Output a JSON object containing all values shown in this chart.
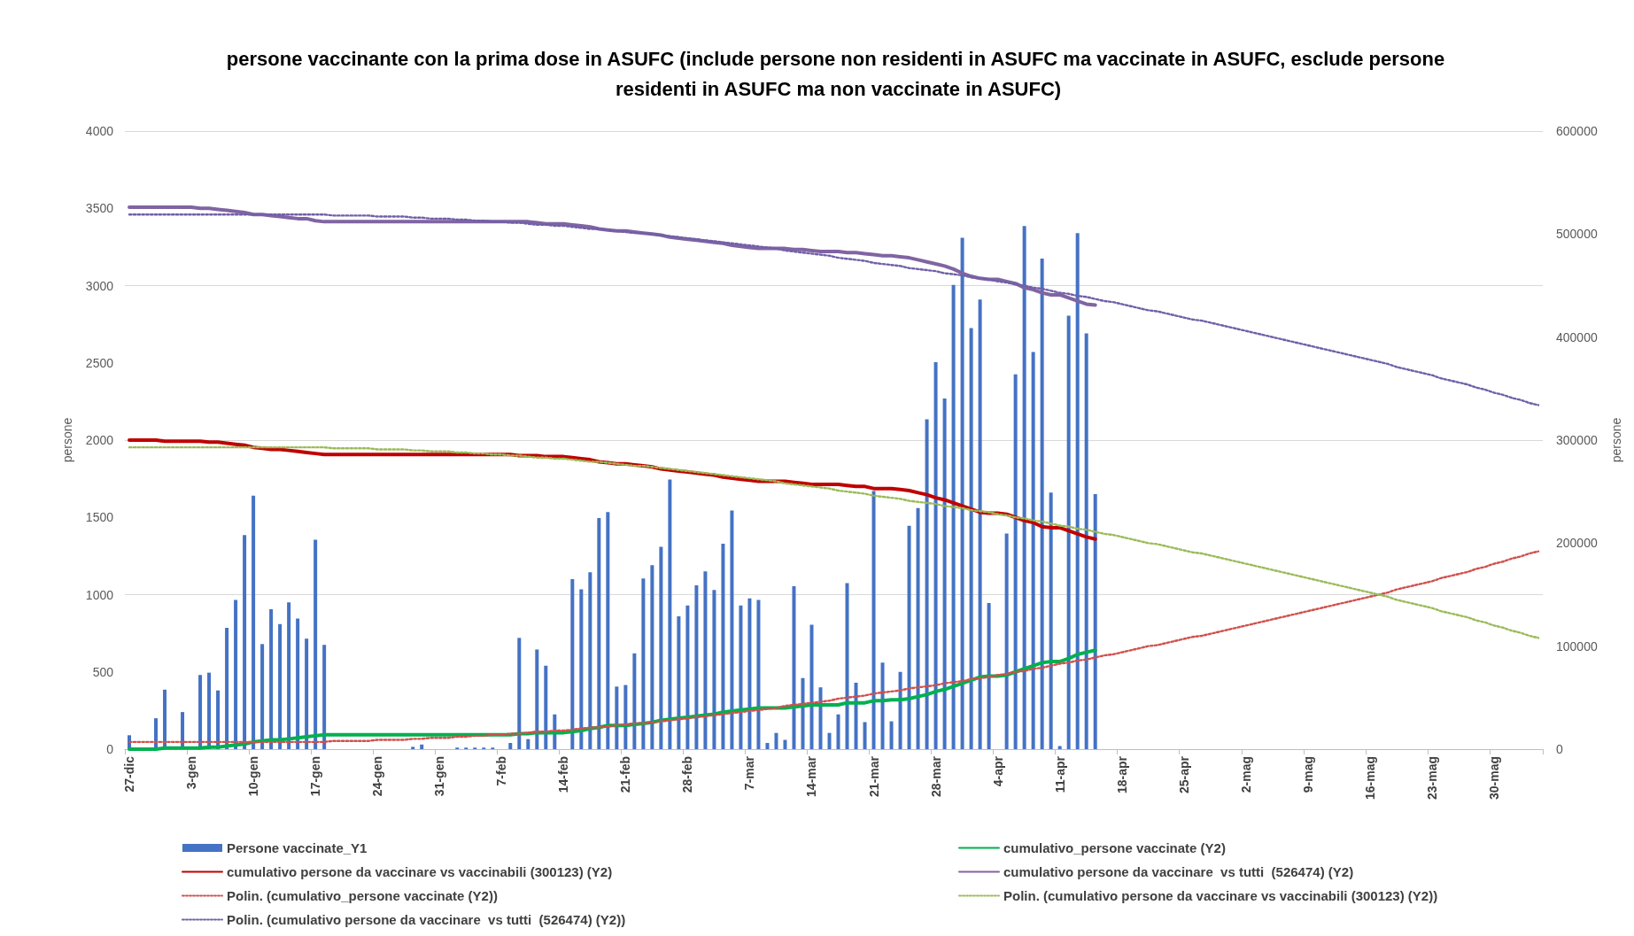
{
  "chart_data": {
    "type": "bar",
    "title": "persone vaccinante con la prima dose in ASUFC (include persone non residenti in ASUFC ma vaccinate in ASUFC, esclude persone residenti in ASUFC ma non vaccinate in ASUFC)",
    "ylabel": "persone",
    "y2label": "persone",
    "categories": [
      "27-dic",
      null,
      null,
      null,
      null,
      null,
      null,
      "3-gen",
      null,
      null,
      null,
      null,
      null,
      null,
      "10-gen",
      null,
      null,
      null,
      null,
      null,
      null,
      "17-gen",
      null,
      null,
      null,
      null,
      null,
      null,
      "24-gen",
      null,
      null,
      null,
      null,
      null,
      null,
      "31-gen",
      null,
      null,
      null,
      null,
      null,
      null,
      "7-feb",
      null,
      null,
      null,
      null,
      null,
      null,
      "14-feb",
      null,
      null,
      null,
      null,
      null,
      null,
      "21-feb",
      null,
      null,
      null,
      null,
      null,
      null,
      "28-feb",
      null,
      null,
      null,
      null,
      null,
      null,
      "7-mar",
      null,
      null,
      null,
      null,
      null,
      null,
      "14-mar",
      null,
      null,
      null,
      null,
      null,
      null,
      "21-mar",
      null,
      null,
      null,
      null,
      null,
      null,
      "28-mar",
      null,
      null,
      null,
      null,
      null,
      null,
      "4-apr",
      null,
      null,
      null,
      null,
      null,
      null,
      "11-apr",
      null,
      null,
      null,
      null,
      null,
      null,
      "18-apr",
      null,
      null,
      null,
      null,
      null,
      null,
      "25-apr",
      null,
      null,
      null,
      null,
      null,
      null,
      "2-mag",
      null,
      null,
      null,
      null,
      null,
      null,
      "9-mag",
      null,
      null,
      null,
      null,
      null,
      null,
      "16-mag",
      null,
      null,
      null,
      null,
      null,
      null,
      "23-mag",
      null,
      null,
      null,
      null,
      null,
      null,
      "30-mag",
      null,
      null,
      null,
      null,
      null
    ],
    "ylim": [
      0,
      4000
    ],
    "yticks": [
      0,
      500,
      1000,
      1500,
      2000,
      2500,
      3000,
      3500,
      4000
    ],
    "y2lim": [
      0,
      600000
    ],
    "y2ticks": [
      0,
      100000,
      200000,
      300000,
      400000,
      500000,
      600000
    ],
    "grid": "y",
    "legend": "bottom",
    "marker": "none",
    "series": [
      {
        "name": "Persone vaccinate_Y1",
        "color": "#4472c4",
        "values": [
          90,
          null,
          null,
          200,
          385,
          null,
          240,
          null,
          480,
          495,
          380,
          785,
          965,
          1385,
          1640,
          680,
          905,
          810,
          950,
          845,
          715,
          1355,
          675,
          null,
          null,
          null,
          null,
          null,
          null,
          null,
          null,
          null,
          15,
          30,
          null,
          null,
          null,
          10,
          10,
          10,
          10,
          10,
          null,
          40,
          720,
          65,
          645,
          540,
          225,
          null,
          1100,
          1035,
          1145,
          1495,
          1535,
          405,
          415,
          620,
          1105,
          1190,
          1310,
          1745,
          860,
          930,
          1060,
          1150,
          1030,
          1330,
          1545,
          930,
          975,
          965,
          40,
          105,
          60,
          1055,
          460,
          805,
          400,
          105,
          225,
          1075,
          430,
          175,
          1670,
          560,
          180,
          500,
          1445,
          1560,
          2135,
          2505,
          2270,
          3005,
          3310,
          2725,
          2910,
          945,
          null,
          1395,
          2425,
          3385,
          2570,
          3175,
          1660,
          20,
          2805,
          3340,
          2690,
          1650,
          null,
          null,
          null,
          null,
          null,
          null,
          null,
          null,
          null,
          null,
          null,
          null,
          null,
          null,
          null,
          null,
          null,
          null,
          null,
          null,
          null,
          null,
          null,
          null,
          null,
          null,
          null,
          null,
          null,
          null,
          null,
          null,
          null,
          null,
          null,
          null,
          null,
          null,
          null,
          null,
          null,
          null,
          null,
          null,
          null,
          null,
          null,
          null,
          null,
          null
        ]
      },
      {
        "name": "cumulativo_persone vaccinate (Y2)",
        "type": "line",
        "axis": "y2",
        "color": "#00b050",
        "values": [
          0,
          0,
          0,
          0,
          1000,
          1000,
          1000,
          1000,
          1000,
          2000,
          2000,
          3000,
          4000,
          5000,
          7000,
          8000,
          9000,
          9000,
          10000,
          11000,
          12000,
          13000,
          14000,
          14000,
          14000,
          14000,
          14000,
          14000,
          14000,
          14000,
          14000,
          14000,
          14000,
          14000,
          14000,
          14000,
          14000,
          14000,
          14000,
          14000,
          14000,
          14000,
          14000,
          14000,
          15000,
          15000,
          16000,
          16000,
          16000,
          16000,
          17000,
          18000,
          20000,
          21000,
          23000,
          23000,
          23000,
          24000,
          25000,
          26000,
          28000,
          29000,
          30000,
          31000,
          32000,
          33000,
          34000,
          36000,
          37000,
          38000,
          39000,
          40000,
          40000,
          40000,
          40000,
          41000,
          42000,
          43000,
          43000,
          43000,
          43000,
          45000,
          45000,
          45000,
          47000,
          47000,
          48000,
          48000,
          49000,
          51000,
          53000,
          56000,
          58000,
          61000,
          64000,
          67000,
          70000,
          71000,
          71000,
          72000,
          75000,
          78000,
          81000,
          84000,
          85000,
          85000,
          88000,
          92000,
          94000,
          96000,
          null,
          null,
          null,
          null,
          null,
          null,
          null,
          null,
          null,
          null,
          null,
          null,
          null,
          null,
          null,
          null,
          null,
          null,
          null,
          null,
          null,
          null,
          null,
          null,
          null,
          null,
          null,
          null,
          null,
          null,
          null,
          null,
          null,
          null,
          null,
          null,
          null,
          null,
          null,
          null,
          null,
          null,
          null,
          null,
          null,
          null,
          null,
          null,
          null,
          null
        ]
      },
      {
        "name": "cumulativo persone da vaccinare vs vaccinabili (300123) (Y2)",
        "type": "line",
        "axis": "y2",
        "color": "#c00000",
        "values": [
          300000,
          300000,
          300000,
          300000,
          299000,
          299000,
          299000,
          299000,
          299000,
          298000,
          298000,
          297000,
          296000,
          295000,
          293000,
          292000,
          291000,
          291000,
          290000,
          289000,
          288000,
          287000,
          286000,
          286000,
          286000,
          286000,
          286000,
          286000,
          286000,
          286000,
          286000,
          286000,
          286000,
          286000,
          286000,
          286000,
          286000,
          286000,
          286000,
          286000,
          286000,
          286000,
          286000,
          286000,
          285000,
          285000,
          285000,
          284000,
          284000,
          284000,
          283000,
          282000,
          281000,
          279000,
          278000,
          277000,
          277000,
          276000,
          275000,
          274000,
          272000,
          271000,
          270000,
          269000,
          268000,
          267000,
          266000,
          264000,
          263000,
          262000,
          261000,
          260000,
          260000,
          260000,
          260000,
          259000,
          258000,
          257000,
          257000,
          257000,
          257000,
          256000,
          255000,
          255000,
          253000,
          253000,
          253000,
          252000,
          251000,
          249000,
          247000,
          244000,
          242000,
          239000,
          236000,
          233000,
          230000,
          229000,
          229000,
          228000,
          225000,
          222000,
          220000,
          216000,
          215000,
          215000,
          212000,
          209000,
          206000,
          204000,
          null,
          null,
          null,
          null,
          null,
          null,
          null,
          null,
          null,
          null,
          null,
          null,
          null,
          null,
          null,
          null,
          null,
          null,
          null,
          null,
          null,
          null,
          null,
          null,
          null,
          null,
          null,
          null,
          null,
          null,
          null,
          null,
          null,
          null,
          null,
          null,
          null,
          null,
          null,
          null,
          null,
          null,
          null,
          null,
          null,
          null,
          null,
          null,
          null,
          null
        ]
      },
      {
        "name": "cumulativo persone da vaccinare  vs tutti  (526474) (Y2)",
        "type": "line",
        "axis": "y2",
        "color": "#8064a2",
        "values": [
          526000,
          526000,
          526000,
          526000,
          526000,
          526000,
          526000,
          526000,
          525000,
          525000,
          524000,
          523000,
          522000,
          521000,
          519000,
          519000,
          518000,
          517000,
          516000,
          515000,
          515000,
          513000,
          512000,
          512000,
          512000,
          512000,
          512000,
          512000,
          512000,
          512000,
          512000,
          512000,
          512000,
          512000,
          512000,
          512000,
          512000,
          512000,
          512000,
          512000,
          512000,
          512000,
          512000,
          512000,
          512000,
          512000,
          511000,
          510000,
          510000,
          510000,
          509000,
          508000,
          507000,
          505000,
          504000,
          503000,
          503000,
          502000,
          501000,
          500000,
          499000,
          497000,
          496000,
          495000,
          494000,
          493000,
          492000,
          491000,
          489000,
          488000,
          487000,
          486000,
          486000,
          486000,
          486000,
          485000,
          485000,
          484000,
          483000,
          483000,
          483000,
          482000,
          482000,
          481000,
          480000,
          479000,
          479000,
          478000,
          477000,
          475000,
          473000,
          471000,
          469000,
          466000,
          462000,
          459000,
          457000,
          456000,
          456000,
          454000,
          452000,
          448000,
          446000,
          443000,
          441000,
          441000,
          438000,
          435000,
          432000,
          431000,
          null,
          null,
          null,
          null,
          null,
          null,
          null,
          null,
          null,
          null,
          null,
          null,
          null,
          null,
          null,
          null,
          null,
          null,
          null,
          null,
          null,
          null,
          null,
          null,
          null,
          null,
          null,
          null,
          null,
          null,
          null,
          null,
          null,
          null,
          null,
          null,
          null,
          null,
          null,
          null,
          null,
          null,
          null,
          null,
          null,
          null,
          null,
          null,
          null,
          null
        ]
      },
      {
        "name": "Polin. (cumulativo_persone vaccinate (Y2))",
        "type": "line",
        "axis": "y2",
        "color": "#d0504d",
        "line_style": "dotted",
        "values": [
          7000,
          7000,
          7000,
          7000,
          7000,
          7000,
          7000,
          7000,
          7000,
          7000,
          7000,
          7000,
          7000,
          7000,
          7000,
          7000,
          7000,
          7000,
          7000,
          7000,
          7000,
          7000,
          7000,
          8000,
          8000,
          8000,
          8000,
          8000,
          9000,
          9000,
          9000,
          9000,
          10000,
          10000,
          11000,
          11000,
          11000,
          12000,
          12000,
          13000,
          13000,
          14000,
          14000,
          15000,
          15000,
          16000,
          17000,
          17000,
          18000,
          18000,
          19000,
          20000,
          21000,
          21000,
          22000,
          23000,
          24000,
          25000,
          25000,
          26000,
          27000,
          28000,
          29000,
          30000,
          31000,
          32000,
          33000,
          34000,
          35000,
          36000,
          37000,
          38000,
          39000,
          40000,
          42000,
          43000,
          44000,
          45000,
          46000,
          47000,
          49000,
          50000,
          51000,
          52000,
          54000,
          55000,
          56000,
          57000,
          59000,
          60000,
          61000,
          62000,
          64000,
          65000,
          66000,
          68000,
          69000,
          70000,
          72000,
          73000,
          75000,
          76000,
          78000,
          79000,
          81000,
          83000,
          84000,
          86000,
          87000,
          89000,
          91000,
          92000,
          94000,
          96000,
          98000,
          100000,
          101000,
          103000,
          105000,
          107000,
          109000,
          110000,
          112000,
          114000,
          116000,
          118000,
          120000,
          122000,
          124000,
          126000,
          128000,
          130000,
          132000,
          134000,
          136000,
          138000,
          140000,
          142000,
          144000,
          146000,
          148000,
          150000,
          152000,
          155000,
          157000,
          159000,
          161000,
          163000,
          166000,
          168000,
          170000,
          172000,
          175000,
          177000,
          180000,
          182000,
          185000,
          187000,
          190000,
          192000
        ]
      },
      {
        "name": "Polin. (cumulativo persone da vaccinare vs vaccinabili (300123) (Y2))",
        "type": "line",
        "axis": "y2",
        "color": "#9bbb59",
        "line_style": "dotted",
        "values": [
          293000,
          293000,
          293000,
          293000,
          293000,
          293000,
          293000,
          293000,
          293000,
          293000,
          293000,
          293000,
          293000,
          293000,
          293000,
          293000,
          293000,
          293000,
          293000,
          293000,
          293000,
          293000,
          293000,
          292000,
          292000,
          292000,
          292000,
          292000,
          291000,
          291000,
          291000,
          291000,
          290000,
          290000,
          289000,
          289000,
          289000,
          288000,
          288000,
          287000,
          287000,
          286000,
          286000,
          285000,
          285000,
          284000,
          283000,
          283000,
          282000,
          282000,
          281000,
          280000,
          279000,
          279000,
          278000,
          277000,
          276000,
          275000,
          275000,
          274000,
          273000,
          272000,
          271000,
          270000,
          269000,
          268000,
          267000,
          266000,
          265000,
          264000,
          263000,
          262000,
          261000,
          260000,
          258000,
          257000,
          256000,
          255000,
          254000,
          253000,
          251000,
          250000,
          249000,
          248000,
          246000,
          245000,
          244000,
          243000,
          241000,
          240000,
          239000,
          238000,
          236000,
          235000,
          234000,
          232000,
          231000,
          230000,
          228000,
          227000,
          225000,
          224000,
          222000,
          221000,
          219000,
          217000,
          216000,
          214000,
          213000,
          211000,
          209000,
          208000,
          206000,
          204000,
          202000,
          200000,
          199000,
          197000,
          195000,
          193000,
          191000,
          190000,
          188000,
          186000,
          184000,
          182000,
          180000,
          178000,
          176000,
          174000,
          172000,
          170000,
          168000,
          166000,
          164000,
          162000,
          160000,
          158000,
          156000,
          154000,
          152000,
          150000,
          148000,
          145000,
          143000,
          141000,
          139000,
          137000,
          134000,
          132000,
          130000,
          128000,
          125000,
          123000,
          120000,
          118000,
          115000,
          113000,
          110000,
          108000
        ]
      },
      {
        "name": "Polin. (cumulativo persone da vaccinare  vs tutti  (526474) (Y2))",
        "type": "line",
        "axis": "y2",
        "color": "#7060a8",
        "line_style": "dotted",
        "values": [
          519000,
          519000,
          519000,
          519000,
          519000,
          519000,
          519000,
          519000,
          519000,
          519000,
          519000,
          519000,
          519000,
          519000,
          519000,
          519000,
          519000,
          519000,
          519000,
          519000,
          519000,
          519000,
          519000,
          518000,
          518000,
          518000,
          518000,
          518000,
          517000,
          517000,
          517000,
          517000,
          516000,
          516000,
          515000,
          515000,
          515000,
          514000,
          514000,
          513000,
          513000,
          512000,
          512000,
          511000,
          511000,
          510000,
          509000,
          509000,
          508000,
          508000,
          507000,
          506000,
          505000,
          505000,
          504000,
          503000,
          502000,
          501000,
          501000,
          500000,
          499000,
          498000,
          497000,
          496000,
          495000,
          494000,
          493000,
          492000,
          491000,
          490000,
          489000,
          488000,
          487000,
          486000,
          484000,
          483000,
          482000,
          481000,
          480000,
          479000,
          477000,
          476000,
          475000,
          474000,
          472000,
          471000,
          470000,
          469000,
          467000,
          466000,
          465000,
          464000,
          462000,
          461000,
          460000,
          458000,
          457000,
          456000,
          454000,
          453000,
          451000,
          450000,
          448000,
          447000,
          445000,
          443000,
          442000,
          440000,
          439000,
          437000,
          435000,
          434000,
          432000,
          430000,
          428000,
          426000,
          425000,
          423000,
          421000,
          419000,
          417000,
          416000,
          414000,
          412000,
          410000,
          408000,
          406000,
          404000,
          402000,
          400000,
          398000,
          396000,
          394000,
          392000,
          390000,
          388000,
          386000,
          384000,
          382000,
          380000,
          378000,
          376000,
          374000,
          371000,
          369000,
          367000,
          365000,
          363000,
          360000,
          358000,
          356000,
          354000,
          351000,
          349000,
          346000,
          344000,
          341000,
          339000,
          336000,
          334000
        ]
      }
    ]
  }
}
